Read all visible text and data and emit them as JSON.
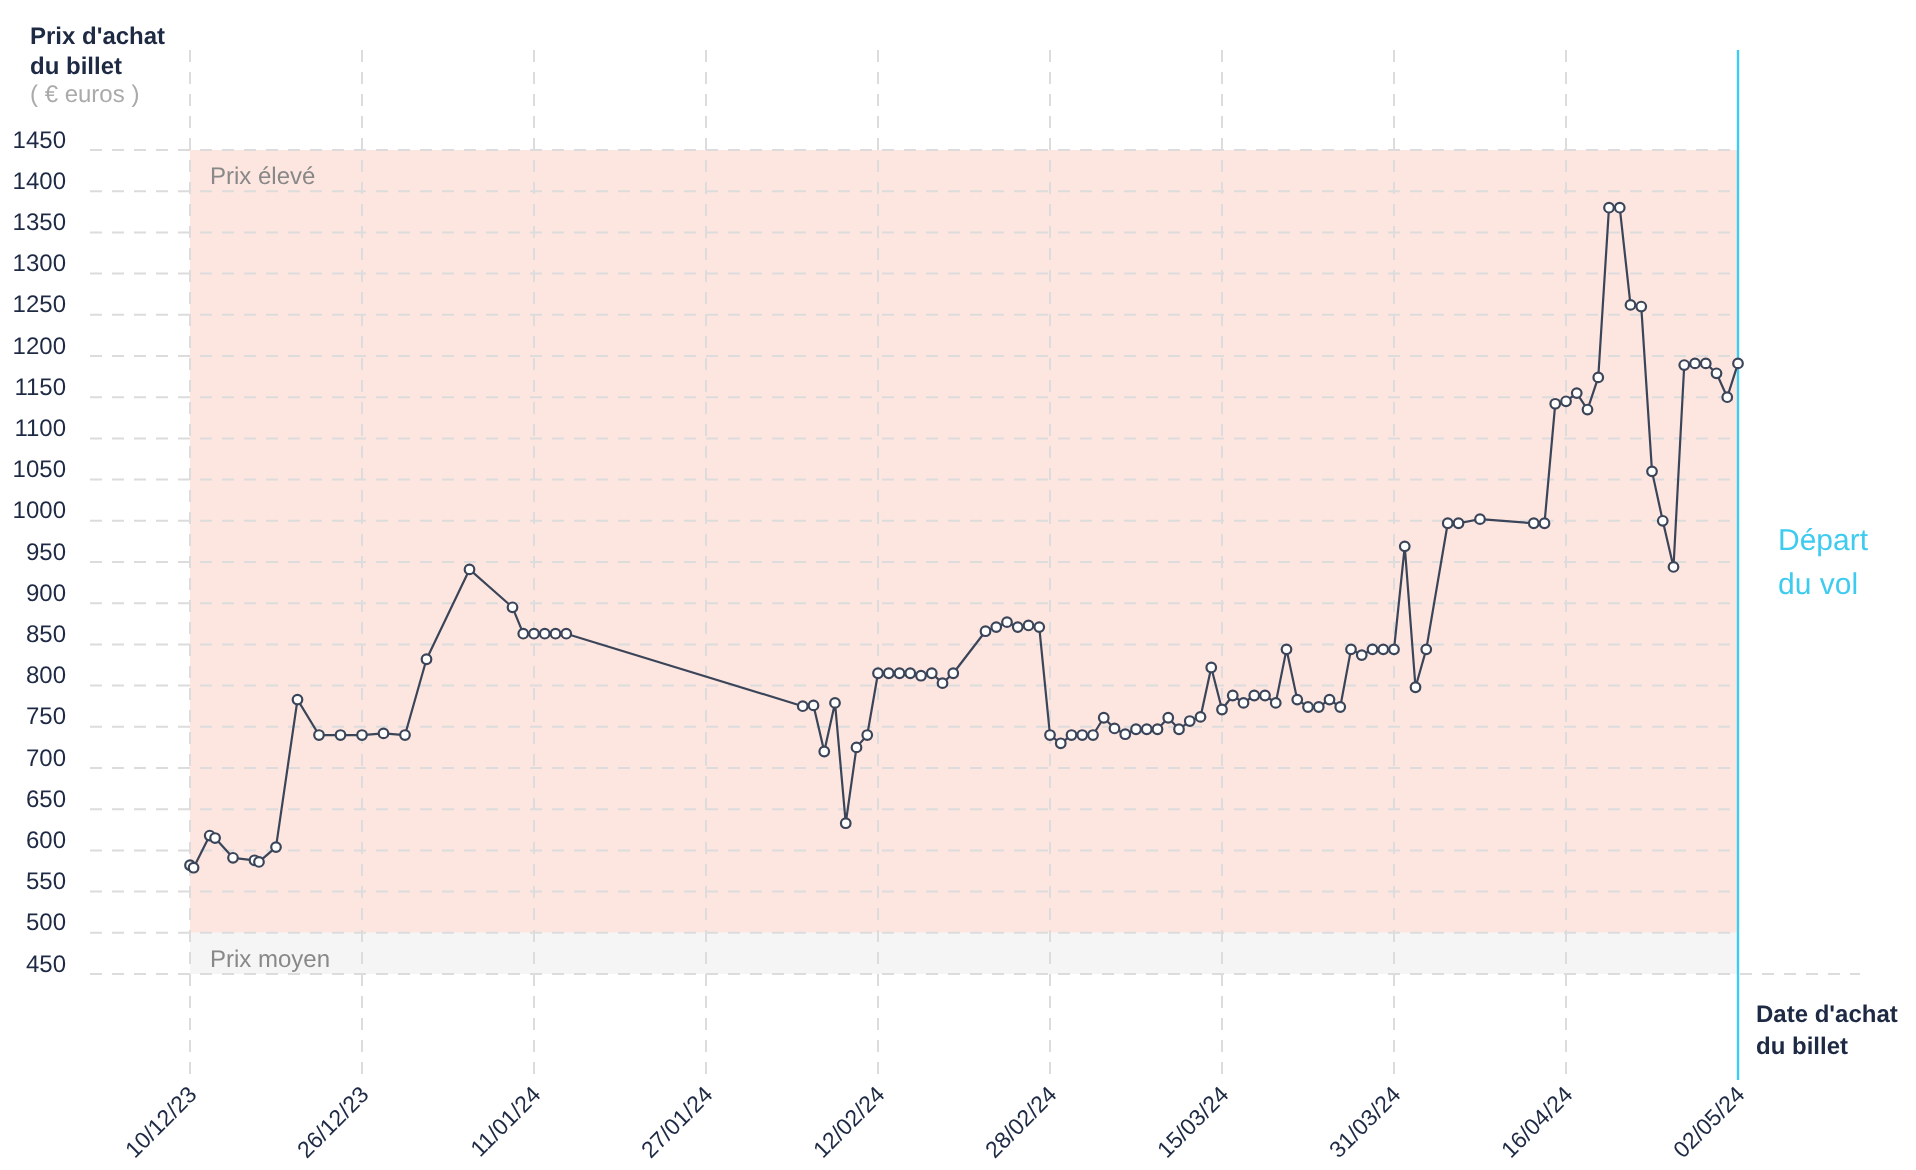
{
  "chart_data": {
    "type": "line",
    "ylabel": "Prix d'achat du billet",
    "xlabel": "Date d'achat du billet",
    "annotations": [
      "( € euros )"
    ],
    "x": [
      "2023-12-10",
      "2023-12-10T08:00",
      "2023-12-11T20:00",
      "2023-12-12T08:00",
      "2023-12-14",
      "2023-12-16",
      "2023-12-16T10:00",
      "2023-12-18",
      "2023-12-20",
      "2023-12-22",
      "2023-12-24",
      "2023-12-26",
      "2023-12-28",
      "2023-12-30",
      "2024-01-01",
      "2024-01-05",
      "2024-01-09",
      "2024-01-10",
      "2024-01-11",
      "2024-01-12",
      "2024-01-13",
      "2024-01-14",
      "2024-02-05",
      "2024-02-06",
      "2024-02-07",
      "2024-02-08",
      "2024-02-09",
      "2024-02-10",
      "2024-02-11",
      "2024-02-12",
      "2024-02-13",
      "2024-02-14",
      "2024-02-15",
      "2024-02-16",
      "2024-02-17",
      "2024-02-18",
      "2024-02-19",
      "2024-02-22",
      "2024-02-23",
      "2024-02-24",
      "2024-02-25",
      "2024-02-26",
      "2024-02-27",
      "2024-02-28",
      "2024-02-29",
      "2024-03-01",
      "2024-03-02",
      "2024-03-03",
      "2024-03-04",
      "2024-03-05",
      "2024-03-06",
      "2024-03-07",
      "2024-03-08",
      "2024-03-09",
      "2024-03-10",
      "2024-03-11",
      "2024-03-12",
      "2024-03-13",
      "2024-03-14",
      "2024-03-15",
      "2024-03-16",
      "2024-03-17",
      "2024-03-18",
      "2024-03-19",
      "2024-03-20",
      "2024-03-21",
      "2024-03-22",
      "2024-03-23",
      "2024-03-24",
      "2024-03-25",
      "2024-03-26",
      "2024-03-27",
      "2024-03-28",
      "2024-03-29",
      "2024-03-30",
      "2024-03-31",
      "2024-04-01",
      "2024-04-02",
      "2024-04-03",
      "2024-04-05",
      "2024-04-06",
      "2024-04-08",
      "2024-04-13",
      "2024-04-14",
      "2024-04-15",
      "2024-04-16",
      "2024-04-17",
      "2024-04-18",
      "2024-04-19",
      "2024-04-20",
      "2024-04-21",
      "2024-04-22",
      "2024-04-23",
      "2024-04-24",
      "2024-04-25",
      "2024-04-26",
      "2024-04-27",
      "2024-04-28",
      "2024-04-29",
      "2024-04-30",
      "2024-05-01",
      "2024-05-02"
    ],
    "series": [
      {
        "color": "#3b4559",
        "values": [
          582,
          579,
          618,
          615,
          591,
          588,
          586,
          604,
          783,
          740,
          740,
          740,
          742,
          740,
          832,
          941,
          895,
          863,
          863,
          863,
          863,
          863,
          775,
          776,
          720,
          779,
          633,
          725,
          740,
          815,
          815,
          815,
          815,
          812,
          815,
          803,
          815,
          866,
          871,
          877,
          871,
          873,
          871,
          740,
          730,
          740,
          740,
          740,
          761,
          748,
          741,
          747,
          747,
          747,
          761,
          747,
          757,
          762,
          822,
          771,
          788,
          779,
          788,
          788,
          779,
          844,
          783,
          774,
          774,
          783,
          774,
          844,
          837,
          844,
          844,
          844,
          969,
          798,
          844,
          997,
          997,
          1002,
          997,
          997,
          1142,
          1145,
          1155,
          1135,
          1174,
          1380,
          1380,
          1262,
          1260,
          1060,
          1000,
          944,
          1189,
          1191,
          1191,
          1179,
          1150,
          1191
        ]
      }
    ],
    "xlim": [
      "2023-12-10",
      "2024-05-02"
    ],
    "xticks": [
      {
        "value": "2023-12-10",
        "label": "10/12/23"
      },
      {
        "value": "2023-12-26",
        "label": "26/12/23"
      },
      {
        "value": "2024-01-11",
        "label": "11/01/24"
      },
      {
        "value": "2024-01-27",
        "label": "27/01/24"
      },
      {
        "value": "2024-02-12",
        "label": "12/02/24"
      },
      {
        "value": "2024-02-28",
        "label": "28/02/24"
      },
      {
        "value": "2024-03-15",
        "label": "15/03/24"
      },
      {
        "value": "2024-03-31",
        "label": "31/03/24"
      },
      {
        "value": "2024-04-16",
        "label": "16/04/24"
      },
      {
        "value": "2024-05-02",
        "label": "02/05/24"
      }
    ],
    "ylim": [
      450,
      1450
    ],
    "yticks": [
      450,
      500,
      550,
      600,
      650,
      700,
      750,
      800,
      850,
      900,
      950,
      1000,
      1050,
      1100,
      1150,
      1200,
      1250,
      1300,
      1350,
      1400,
      1450
    ],
    "grid": true,
    "marker": "circle",
    "line_style": "solid",
    "bands": [
      {
        "axis": "y",
        "from": 500,
        "to": 1450,
        "label": "Prix élevé",
        "color": "#fde6e0"
      },
      {
        "axis": "y",
        "from": 450,
        "to": 500,
        "label": "Prix moyen",
        "color": "#f5f5f5"
      }
    ],
    "ref_lines": [
      {
        "axis": "x",
        "value": "2024-05-02",
        "label": "Départ du vol",
        "color": "#3ecbf0"
      }
    ]
  }
}
